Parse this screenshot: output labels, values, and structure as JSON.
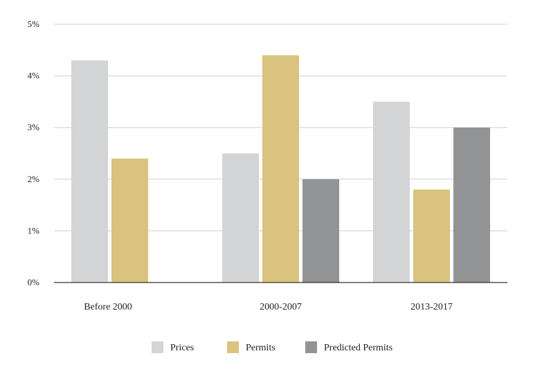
{
  "chart_data": {
    "type": "bar",
    "title": "",
    "xlabel": "",
    "ylabel": "",
    "categories": [
      "Before 2000",
      "2000-2007",
      "2013-2017"
    ],
    "ylim": [
      0,
      5
    ],
    "yticks": [
      0,
      1,
      2,
      3,
      4,
      5
    ],
    "ytick_labels": [
      "0%",
      "1%",
      "2%",
      "3%",
      "4%",
      "5%"
    ],
    "grid": true,
    "legend_position": "bottom-center",
    "series": [
      {
        "name": "Prices",
        "color": "#d3d4d6",
        "values": [
          4.3,
          2.5,
          3.5
        ]
      },
      {
        "name": "Permits",
        "color": "#d9c37e",
        "values": [
          2.4,
          4.4,
          1.8
        ]
      },
      {
        "name": "Predicted Permits",
        "color": "#929395",
        "values": [
          null,
          2.0,
          3.0
        ]
      }
    ]
  }
}
